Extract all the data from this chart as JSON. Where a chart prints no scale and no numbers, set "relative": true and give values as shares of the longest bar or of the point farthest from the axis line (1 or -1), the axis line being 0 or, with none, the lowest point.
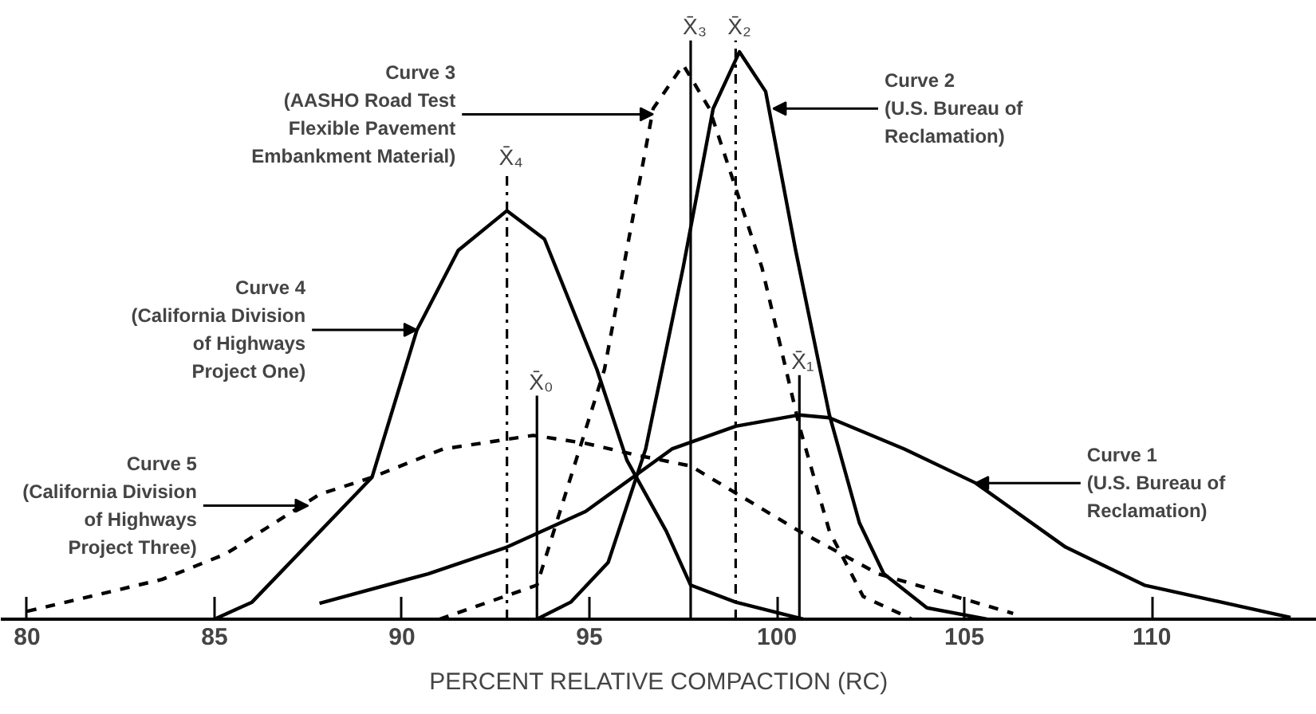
{
  "chart_data": {
    "type": "line",
    "relative": true,
    "xlabel": "PERCENT RELATIVE COMPACTION (RC)",
    "xlim": [
      79.3,
      114.4
    ],
    "xticks": [
      80,
      85,
      90,
      95,
      100,
      105,
      110
    ],
    "grid": false,
    "marker": "none",
    "series": [
      {
        "color": "#000000",
        "line_style": "solid",
        "x": [
          87.8,
          90.7,
          92.8,
          94.9,
          97.2,
          98.9,
          100.6,
          101.4,
          103.4,
          105.3,
          107.7,
          109.8,
          113.7
        ],
        "values": [
          0.028,
          0.08,
          0.127,
          0.19,
          0.3,
          0.34,
          0.36,
          0.355,
          0.3,
          0.24,
          0.127,
          0.06,
          0.003
        ]
      },
      {
        "color": "#000000",
        "line_style": "solid",
        "x": [
          93.6,
          94.5,
          95.5,
          96.5,
          97.5,
          98.3,
          99.0,
          99.7,
          100.5,
          101.4,
          102.2,
          102.85,
          104.0,
          105.6
        ],
        "values": [
          0.0,
          0.03,
          0.1,
          0.3,
          0.62,
          0.9,
          1.0,
          0.93,
          0.65,
          0.36,
          0.17,
          0.08,
          0.02,
          0.0
        ]
      },
      {
        "color": "#000000",
        "line_style": "dashed",
        "x": [
          91.0,
          93.6,
          95.4,
          96.7,
          97.5,
          98.2,
          99.6,
          100.6,
          101.4,
          102.3,
          103.6
        ],
        "values": [
          0.0,
          0.06,
          0.44,
          0.9,
          0.977,
          0.9,
          0.62,
          0.34,
          0.155,
          0.04,
          0.0
        ]
      },
      {
        "color": "#000000",
        "line_style": "solid",
        "x": [
          85.0,
          86.0,
          89.2,
          90.4,
          91.5,
          92.8,
          93.8,
          95.2,
          96.0,
          97.05,
          97.7,
          98.9,
          100.7
        ],
        "values": [
          0.0,
          0.03,
          0.25,
          0.51,
          0.65,
          0.72,
          0.67,
          0.44,
          0.28,
          0.155,
          0.06,
          0.03,
          0.0
        ]
      },
      {
        "color": "#000000",
        "line_style": "dashed",
        "x": [
          80.0,
          83.6,
          85.3,
          87.8,
          89.2,
          91.1,
          93.5,
          94.9,
          96.2,
          97.7,
          100.6,
          102.7,
          106.3
        ],
        "values": [
          0.014,
          0.07,
          0.115,
          0.22,
          0.25,
          0.3,
          0.324,
          0.31,
          0.29,
          0.27,
          0.155,
          0.08,
          0.01
        ]
      }
    ],
    "ref_lines": [
      {
        "axis": "x",
        "value": 93.6,
        "label": "X̄₀",
        "line_style": "solid"
      },
      {
        "axis": "x",
        "value": 100.6,
        "label": "X̄₁",
        "line_style": "solid"
      },
      {
        "axis": "x",
        "value": 98.9,
        "label": "X̄₂",
        "line_style": "dashdot"
      },
      {
        "axis": "x",
        "value": 97.7,
        "label": "X̄₃",
        "line_style": "solid"
      },
      {
        "axis": "x",
        "value": 92.8,
        "label": "X̄₄",
        "line_style": "dashdot"
      }
    ],
    "annotations": [
      {
        "text": "Curve 1\n(U.S. Bureau of\nReclamation)",
        "x": 105.3,
        "y": 0.24
      },
      {
        "text": "Curve 2\n(U.S. Bureau of\nReclamation)",
        "x": 99.9,
        "y": 0.9
      },
      {
        "text": "Curve 3\n(AASHO Road Test\nFlexible Pavement\nEmbankment Material)",
        "x": 96.7,
        "y": 0.89
      },
      {
        "text": "Curve 4\n(California Division\nof Highways\nProject One)",
        "x": 90.4,
        "y": 0.51
      },
      {
        "text": "Curve 5\n(California Division\nof Highways\nProject Three)",
        "x": 87.5,
        "y": 0.2
      }
    ]
  }
}
